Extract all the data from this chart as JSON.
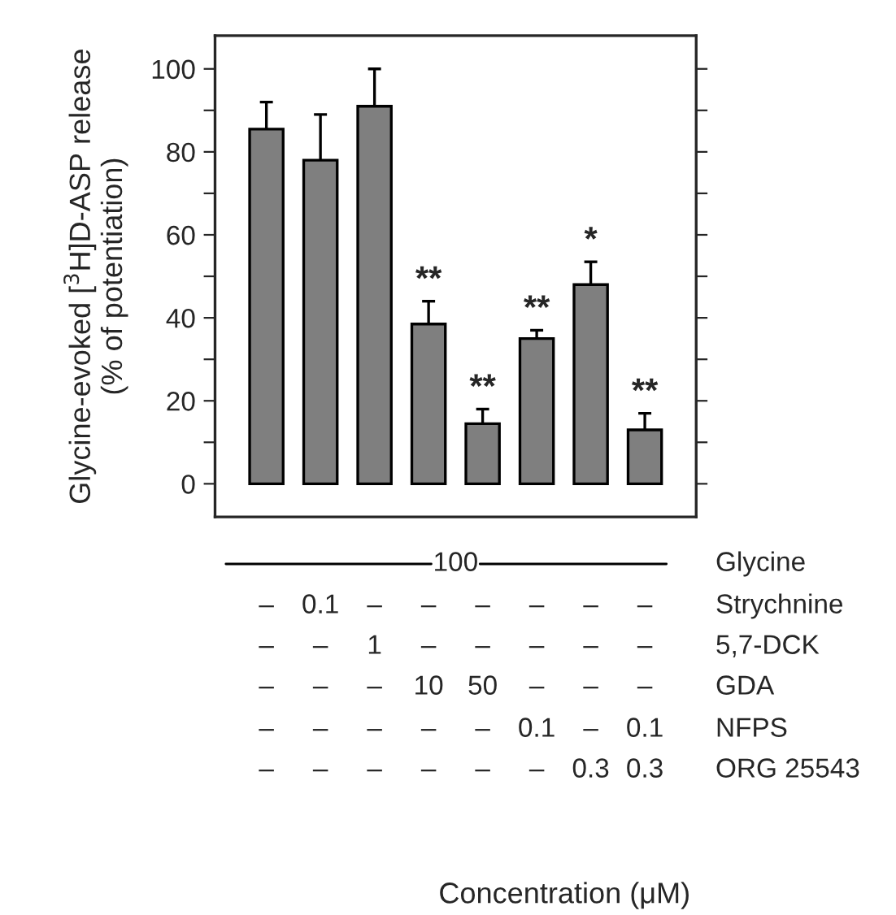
{
  "chart_data": {
    "type": "bar",
    "ylabel": "Glycine-evoked [$^{3}$H]D-ASP release\n(% of potentiation)",
    "categories": [
      null,
      null,
      null,
      null,
      null,
      null,
      null,
      null
    ],
    "values": [
      85.5,
      78,
      91,
      38.5,
      14.5,
      35,
      48,
      13
    ],
    "errors": [
      [
        85.5,
        92
      ],
      [
        78,
        89
      ],
      [
        91,
        100
      ],
      [
        38.5,
        44
      ],
      [
        14.5,
        18
      ],
      [
        35,
        37
      ],
      [
        48,
        53.5
      ],
      [
        13,
        17
      ]
    ],
    "value_labels": [
      null,
      null,
      null,
      "**",
      "**",
      "**",
      "*",
      "**"
    ],
    "color": "#7f7f7f",
    "ylim": [
      -8,
      108
    ],
    "yticks": [
      0,
      {
        "value": 10,
        "label": null
      },
      20,
      {
        "value": 30,
        "label": null
      },
      40,
      {
        "value": 50,
        "label": null
      },
      60,
      {
        "value": 70,
        "label": null
      },
      80,
      {
        "value": 90,
        "label": null
      },
      100
    ],
    "grid": false,
    "annotations": [
      "100",
      "Glycine",
      "–",
      "0.1",
      "–",
      "–",
      "–",
      "–",
      "–",
      "–",
      "Strychnine",
      "–",
      "–",
      "1",
      "–",
      "–",
      "–",
      "–",
      "–",
      "5,7-DCK",
      "–",
      "–",
      "–",
      "10",
      "50",
      "–",
      "–",
      "–",
      "GDA",
      "–",
      "–",
      "–",
      "–",
      "–",
      "0.1",
      "–",
      "0.1",
      "NFPS",
      "–",
      "–",
      "–",
      "–",
      "–",
      "–",
      "0.3",
      "0.3",
      "ORG 25543",
      "Concentration (μM)"
    ]
  }
}
